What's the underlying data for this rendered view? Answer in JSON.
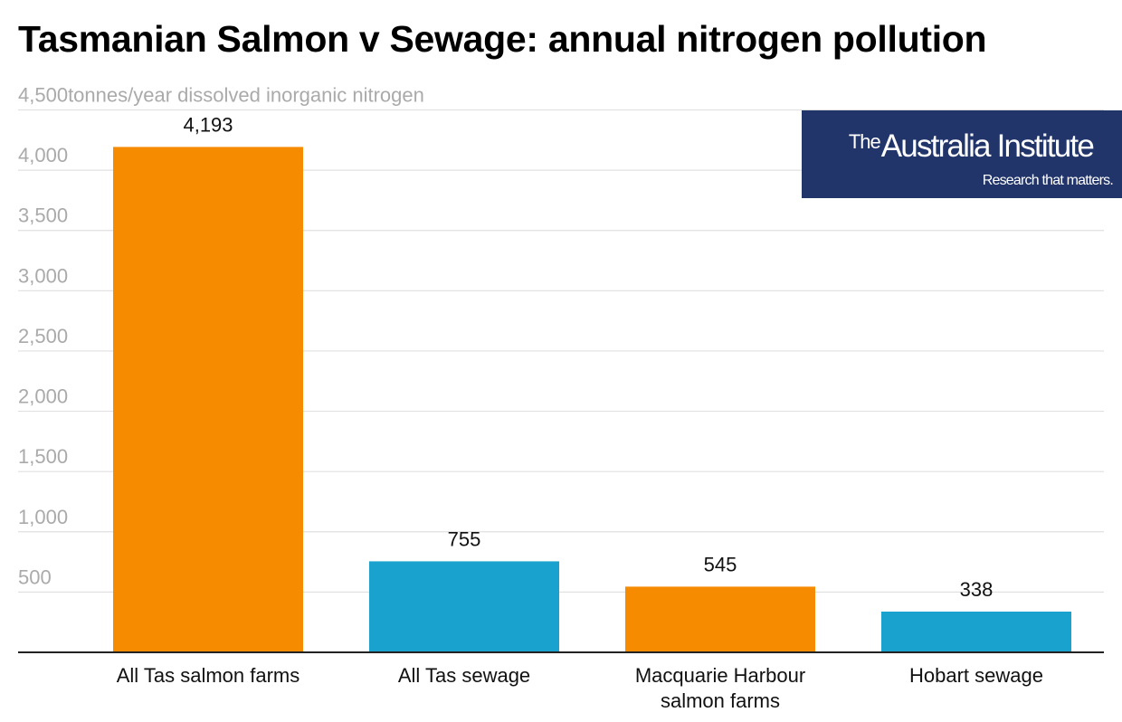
{
  "chart_data": {
    "type": "bar",
    "title": "Tasmanian Salmon v Sewage: annual nitrogen pollution",
    "ylabel": "tonnes/year dissolved inorganic nitrogen",
    "categories": [
      [
        "All Tas salmon farms"
      ],
      [
        "All Tas sewage"
      ],
      [
        "Macquarie Harbour",
        "salmon farms"
      ],
      [
        "Hobart sewage"
      ]
    ],
    "values": [
      4193,
      755,
      545,
      338
    ],
    "value_labels": [
      "4,193",
      "755",
      "545",
      "338"
    ],
    "colors": [
      "#f68b00",
      "#18a2cd",
      "#f68b00",
      "#18a2cd"
    ],
    "ylim": [
      0,
      4500
    ],
    "yticks": [
      500,
      1000,
      1500,
      2000,
      2500,
      3000,
      3500,
      4000,
      4500
    ],
    "ytick_labels": [
      "500",
      "1,000",
      "1,500",
      "2,000",
      "2,500",
      "3,000",
      "3,500",
      "4,000",
      "4,500"
    ],
    "grid": true,
    "legend": "none"
  },
  "logo": {
    "prefix": "The",
    "name": "Australia Institute",
    "tagline": "Research that matters.",
    "background": "#21356a"
  }
}
